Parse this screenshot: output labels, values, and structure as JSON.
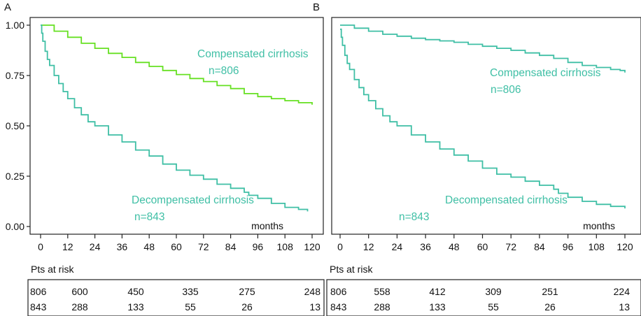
{
  "colors": {
    "green": "#66e022",
    "teal": "#3fbfa5",
    "axis": "#222222"
  },
  "risk_header": "Pts at risk",
  "chart_data": [
    {
      "panel_label": "A",
      "type": "line",
      "xlabel": "months",
      "ylabel": "",
      "xlim": [
        0,
        120
      ],
      "ylim": [
        0,
        1
      ],
      "xticks": [
        "0",
        "12",
        "24",
        "36",
        "48",
        "60",
        "72",
        "84",
        "96",
        "108",
        "120"
      ],
      "yticks": [
        "0.00",
        "0.25",
        "0.50",
        "0.75",
        "1.00"
      ],
      "series": [
        {
          "color": "#66e022",
          "x": [
            0,
            6,
            12,
            18,
            24,
            30,
            36,
            42,
            48,
            54,
            60,
            66,
            72,
            78,
            84,
            90,
            96,
            102,
            108,
            114,
            120
          ],
          "y": [
            1.0,
            0.97,
            0.94,
            0.91,
            0.885,
            0.86,
            0.84,
            0.815,
            0.795,
            0.775,
            0.755,
            0.735,
            0.72,
            0.7,
            0.685,
            0.66,
            0.645,
            0.635,
            0.625,
            0.615,
            0.605
          ]
        },
        {
          "color": "#3fbfa5",
          "x": [
            0,
            0.5,
            1,
            2,
            3,
            4,
            6,
            8,
            10,
            12,
            15,
            18,
            21,
            24,
            30,
            36,
            42,
            48,
            54,
            60,
            66,
            72,
            78,
            84,
            90,
            92,
            96,
            102,
            108,
            114,
            118
          ],
          "y": [
            1.0,
            0.96,
            0.92,
            0.87,
            0.83,
            0.8,
            0.75,
            0.71,
            0.67,
            0.635,
            0.59,
            0.555,
            0.52,
            0.5,
            0.455,
            0.42,
            0.38,
            0.35,
            0.31,
            0.28,
            0.255,
            0.235,
            0.21,
            0.19,
            0.17,
            0.155,
            0.14,
            0.115,
            0.095,
            0.085,
            0.075
          ]
        }
      ],
      "annotations": [
        {
          "text": "Compensated cirrhosis",
          "color": "#3fbfa5"
        },
        {
          "text": "n=806",
          "color": "#3fbfa5"
        },
        {
          "text": "Decompensated cirrhosis",
          "color": "#3fbfa5"
        },
        {
          "text": "n=843",
          "color": "#3fbfa5"
        }
      ],
      "at_risk": [
        [
          "806",
          "600",
          "450",
          "335",
          "275",
          "248"
        ],
        [
          "843",
          "288",
          "133",
          "55",
          "26",
          "13"
        ]
      ]
    },
    {
      "panel_label": "B",
      "type": "line",
      "xlabel": "months",
      "ylabel": "",
      "xlim": [
        0,
        120
      ],
      "ylim": [
        0,
        1
      ],
      "xticks": [
        "0",
        "12",
        "24",
        "36",
        "48",
        "60",
        "72",
        "84",
        "96",
        "108",
        "120"
      ],
      "yticks": [],
      "series": [
        {
          "color": "#3fbfa5",
          "x": [
            0,
            6,
            12,
            18,
            24,
            30,
            36,
            42,
            48,
            54,
            60,
            66,
            72,
            78,
            84,
            90,
            96,
            102,
            108,
            114,
            118,
            120
          ],
          "y": [
            1.0,
            0.985,
            0.97,
            0.955,
            0.945,
            0.935,
            0.928,
            0.922,
            0.915,
            0.905,
            0.895,
            0.885,
            0.875,
            0.862,
            0.85,
            0.835,
            0.815,
            0.8,
            0.79,
            0.78,
            0.775,
            0.765
          ]
        },
        {
          "color": "#3fbfa5",
          "x": [
            0,
            0.5,
            1,
            2,
            3,
            4,
            6,
            8,
            10,
            12,
            15,
            18,
            21,
            24,
            30,
            36,
            42,
            48,
            54,
            60,
            66,
            72,
            78,
            84,
            90,
            92,
            96,
            102,
            108,
            114,
            120
          ],
          "y": [
            0.98,
            0.94,
            0.9,
            0.85,
            0.81,
            0.78,
            0.73,
            0.69,
            0.655,
            0.625,
            0.585,
            0.55,
            0.52,
            0.5,
            0.455,
            0.42,
            0.385,
            0.355,
            0.325,
            0.29,
            0.26,
            0.245,
            0.225,
            0.205,
            0.185,
            0.165,
            0.145,
            0.125,
            0.11,
            0.1,
            0.09
          ]
        }
      ],
      "annotations": [
        {
          "text": "Compensated cirrhosis",
          "color": "#3fbfa5"
        },
        {
          "text": "n=806",
          "color": "#3fbfa5"
        },
        {
          "text": "Decompensated cirrhosis",
          "color": "#3fbfa5"
        },
        {
          "text": "n=843",
          "color": "#3fbfa5"
        }
      ],
      "at_risk": [
        [
          "806",
          "558",
          "412",
          "309",
          "251",
          "224"
        ],
        [
          "843",
          "288",
          "133",
          "55",
          "26",
          "13"
        ]
      ]
    }
  ]
}
